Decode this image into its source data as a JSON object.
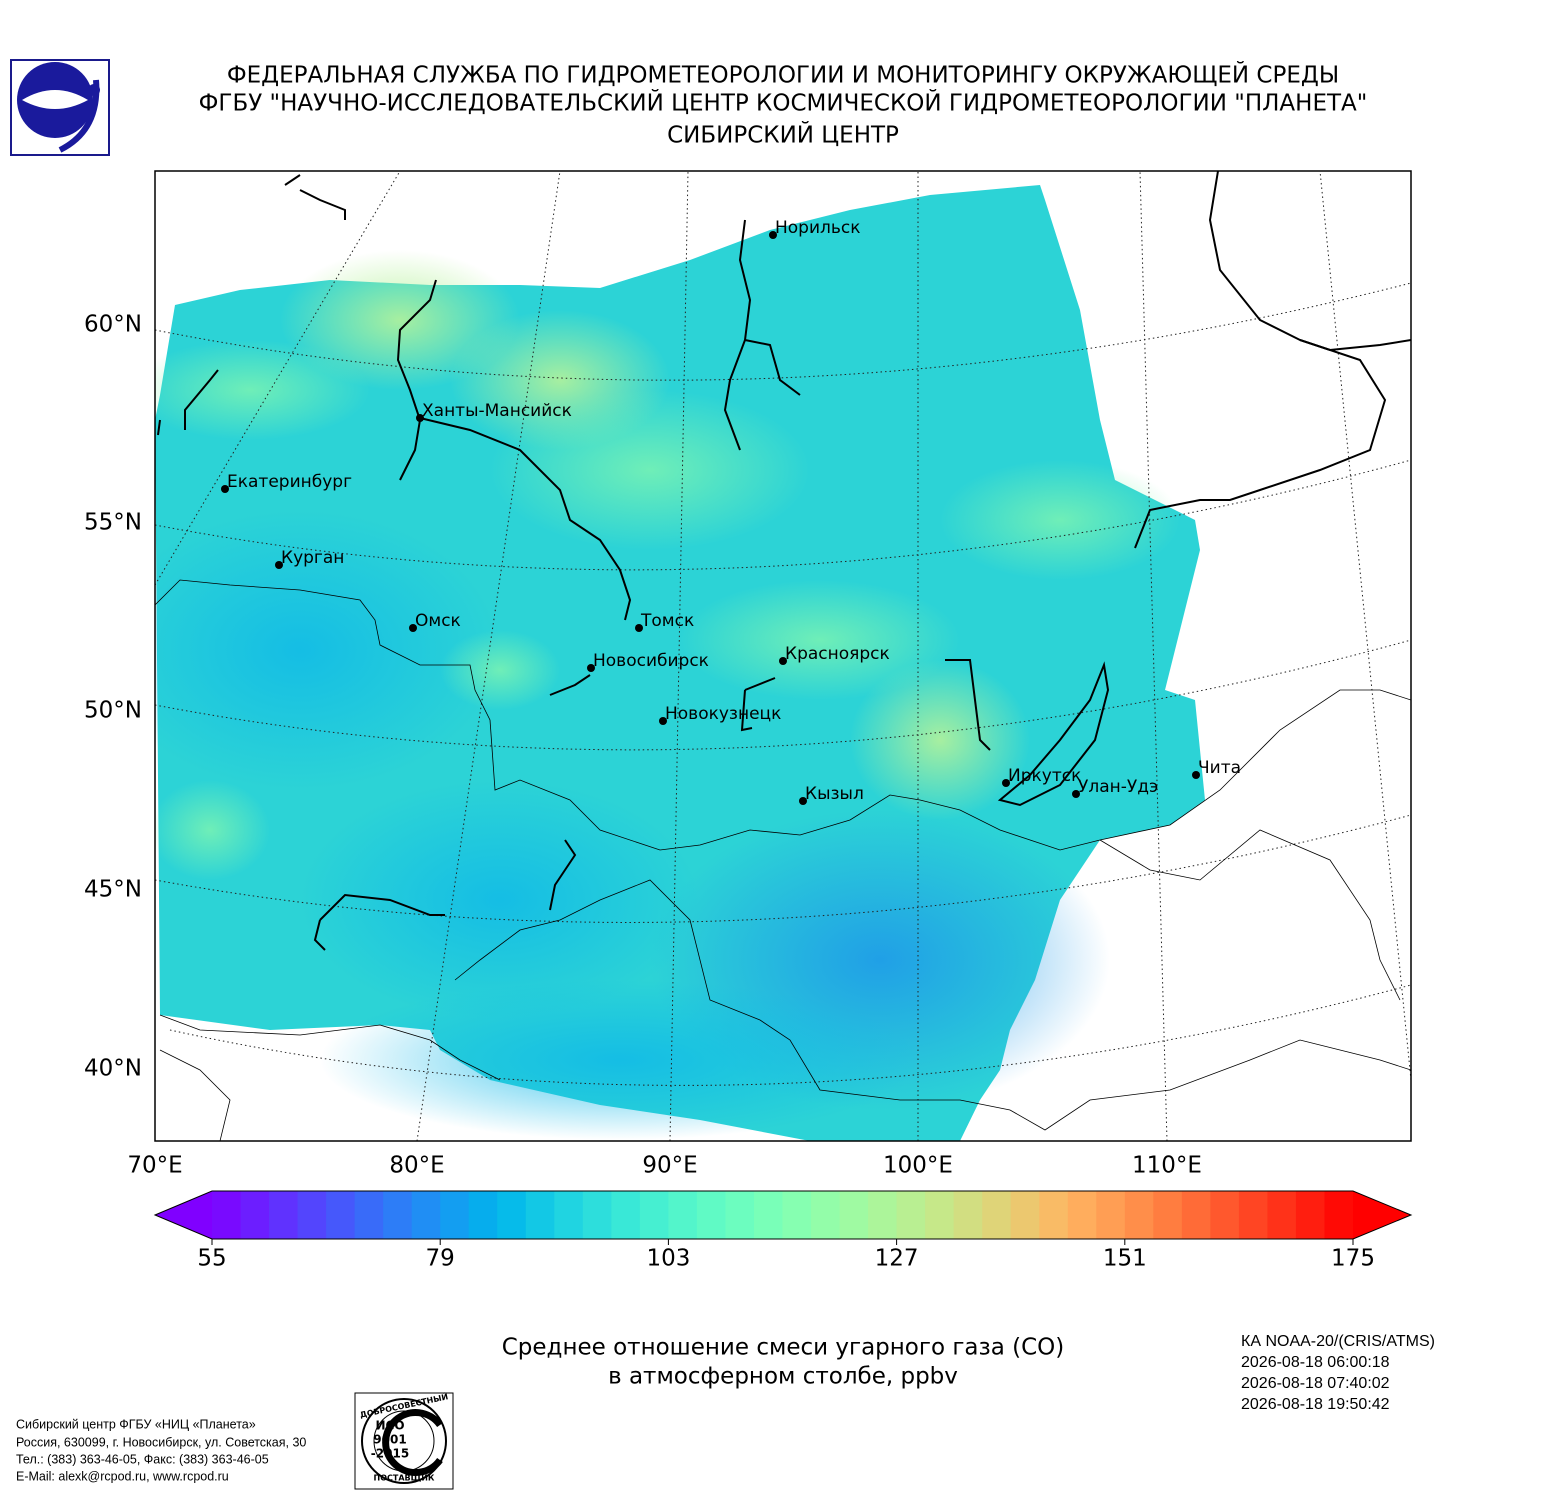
{
  "header": {
    "lines": [
      "ФЕДЕРАЛЬНАЯ СЛУЖБА ПО ГИДРОМЕТЕОРОЛОГИИ И МОНИТОРИНГУ ОКРУЖАЮЩЕЙ СРЕДЫ",
      "ФГБУ \"НАУЧНО-ИССЛЕДОВАТЕЛЬСКИЙ ЦЕНТР КОСМИЧЕСКОЙ ГИДРОМЕТЕОРОЛОГИИ \"ПЛАНЕТА\"",
      "СИБИРСКИЙ ЦЕНТР"
    ]
  },
  "map": {
    "lat_labels": [
      "60°N",
      "55°N",
      "50°N",
      "45°N",
      "40°N"
    ],
    "lon_labels": [
      "70°E",
      "80°E",
      "90°E",
      "100°E",
      "110°E"
    ],
    "cities": [
      "Норильск",
      "Ханты-Мансийск",
      "Екатеринбург",
      "Курган",
      "Омск",
      "Томск",
      "Новосибирск",
      "Красноярск",
      "Новокузнецк",
      "Иркутск",
      "Улан-Удэ",
      "Кызыл",
      "Чита"
    ]
  },
  "colorbar": {
    "range": [
      55,
      175
    ],
    "ticks": [
      55,
      79,
      103,
      127,
      151,
      175
    ]
  },
  "caption": [
    "Среднее отношение смеси угарного газа (CO)",
    "в атмосферном столбе, ppbv"
  ],
  "satellite": [
    "КА NOAA-20/(CRIS/ATMS)",
    "2026-08-18 06:00:18",
    "2026-08-18 07:40:02",
    "2026-08-18 19:50:42"
  ],
  "footer": [
    "Сибирский центр ФГБУ «НИЦ «Планета»",
    "Россия, 630099, г. Новосибирск, ул. Советская, 30",
    "Тел.: (383) 363-46-05, Факс: (383) 363-46-05",
    "E-Mail: alexk@rcpod.ru, www.rcpod.ru"
  ],
  "certificate": {
    "top": "ДОБРОСОВЕСТНЫЙ",
    "standard": [
      "ИСО",
      "9001",
      "-2015"
    ],
    "bottom": "ПОСТАВЩИК"
  }
}
